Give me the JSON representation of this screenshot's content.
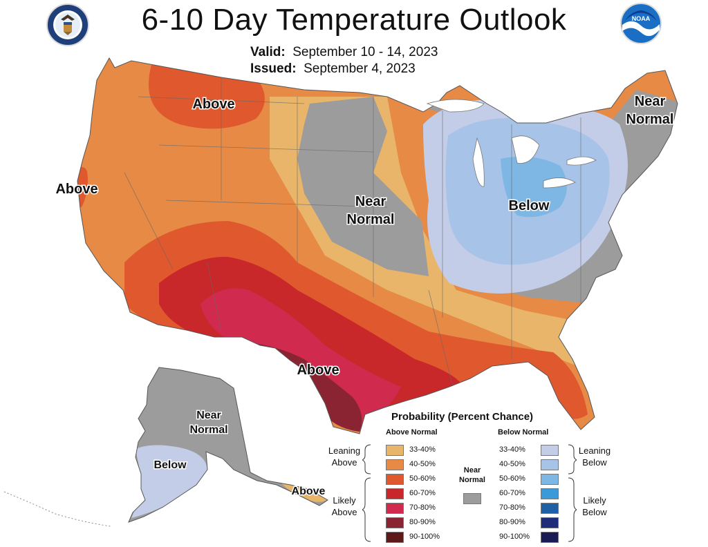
{
  "title": "6-10 Day Temperature Outlook",
  "valid_label": "Valid:",
  "valid_value": "September 10 - 14, 2023",
  "issued_label": "Issued:",
  "issued_value": "September 4, 2023",
  "noara_logo_text": "NOAA",
  "map_labels": {
    "above_nw": "Above",
    "above_ca": "Above",
    "near_normal_central_1": "Near",
    "near_normal_central_2": "Normal",
    "below_east": "Below",
    "near_normal_ne_1": "Near",
    "near_normal_ne_2": "Normal",
    "above_tx": "Above",
    "ak_near_1": "Near",
    "ak_near_2": "Normal",
    "ak_below": "Below",
    "ak_above": "Above"
  },
  "legend": {
    "title": "Probability (Percent Chance)",
    "above_header": "Above Normal",
    "below_header": "Below Normal",
    "near_normal_1": "Near",
    "near_normal_2": "Normal",
    "leaning_above_1": "Leaning",
    "leaning_above_2": "Above",
    "likely_above_1": "Likely",
    "likely_above_2": "Above",
    "leaning_below_1": "Leaning",
    "leaning_below_2": "Below",
    "likely_below_1": "Likely",
    "likely_below_2": "Below",
    "above_bins": [
      "33-40%",
      "40-50%",
      "50-60%",
      "60-70%",
      "70-80%",
      "80-90%",
      "90-100%"
    ],
    "below_bins": [
      "33-40%",
      "40-50%",
      "50-60%",
      "60-70%",
      "70-80%",
      "80-90%",
      "90-100%"
    ]
  },
  "colors": {
    "above": [
      "#e8b56a",
      "#e68a45",
      "#e0582e",
      "#c8282a",
      "#d12a4f",
      "#8b2432",
      "#5c1a1a"
    ],
    "below": [
      "#c4cde8",
      "#a8c3e8",
      "#7eb6e4",
      "#3d9ad8",
      "#1f5fa6",
      "#1f2c7a",
      "#1c1c55"
    ],
    "near_normal": "#9c9c9c"
  }
}
